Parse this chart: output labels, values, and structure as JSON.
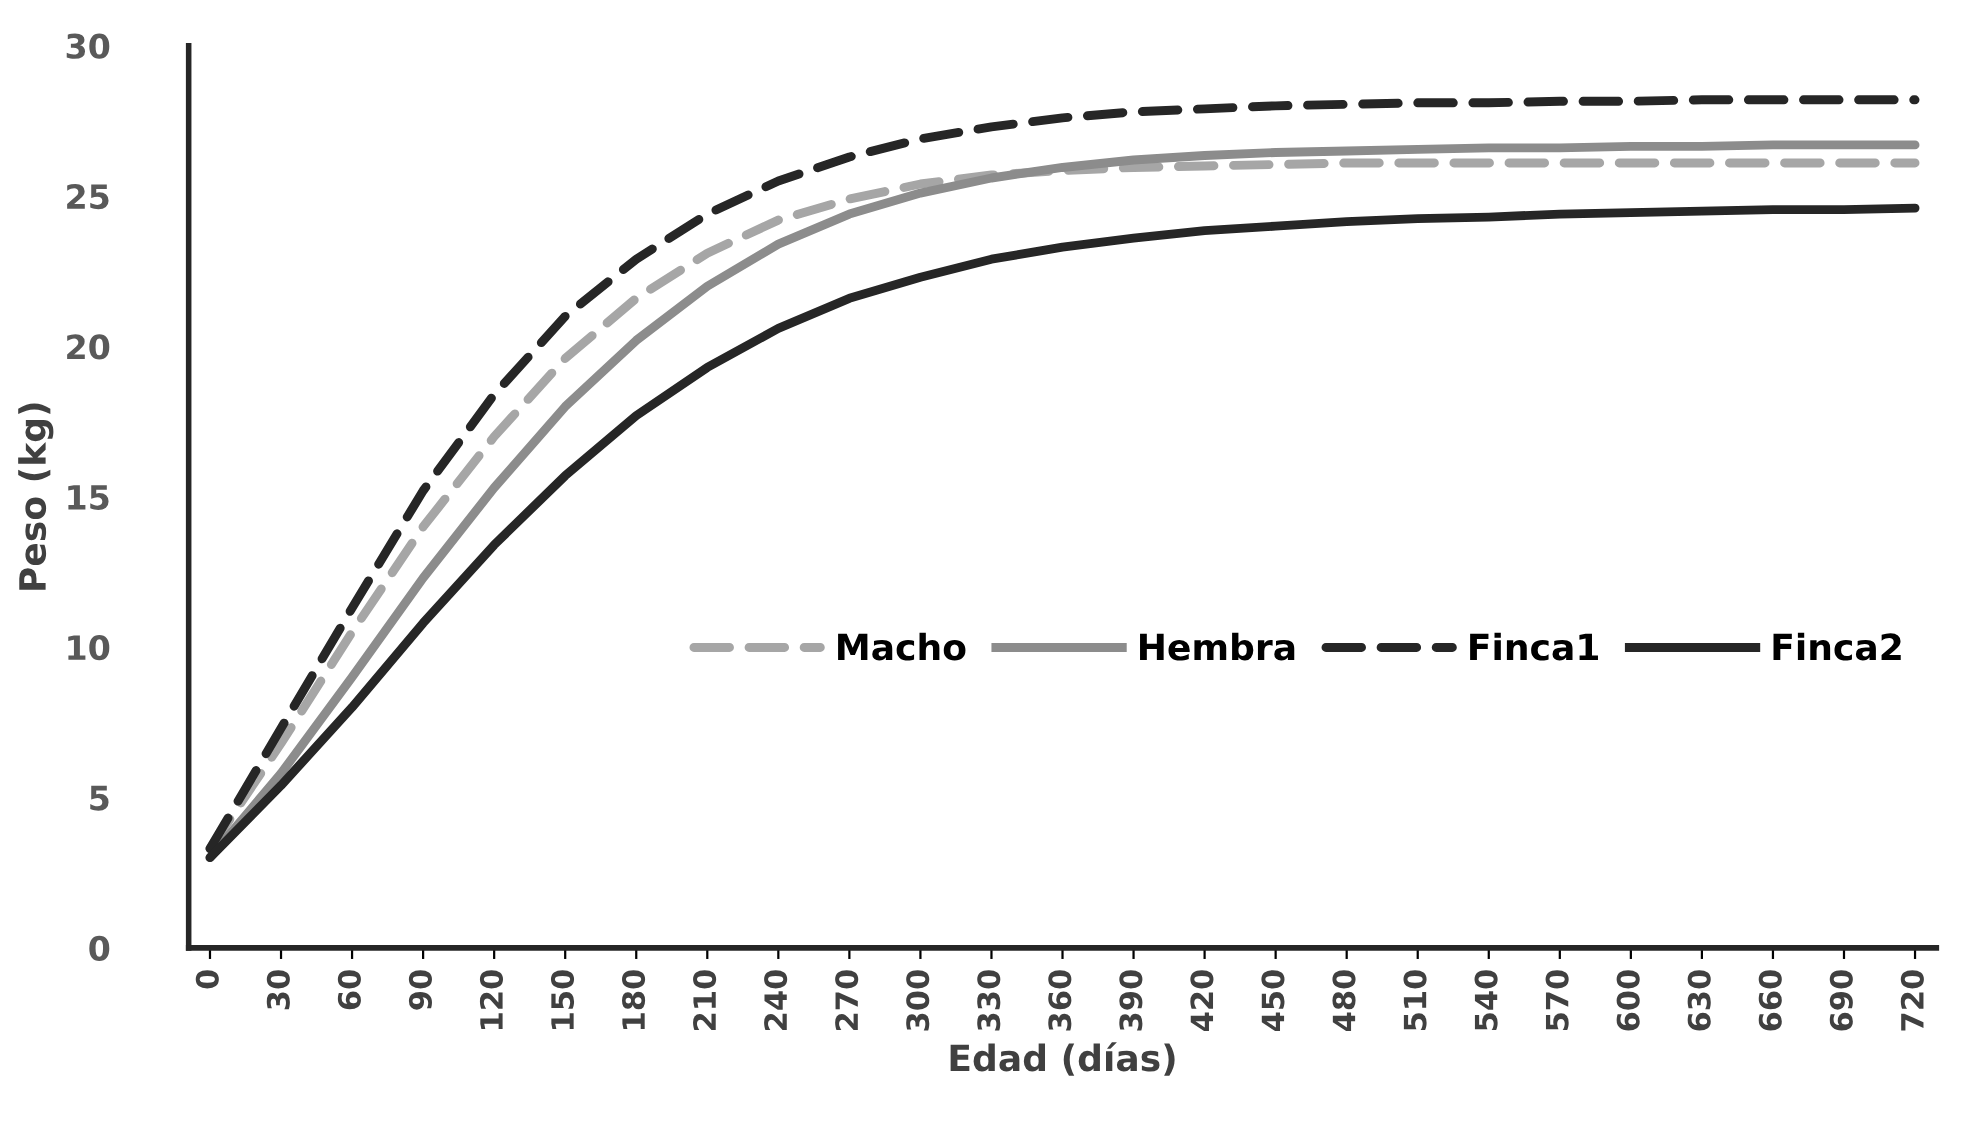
{
  "chart_data": {
    "type": "line",
    "xlabel": "Edad (días)",
    "ylabel": "Peso (kg)",
    "categories": [
      "0",
      "30",
      "60",
      "90",
      "120",
      "150",
      "180",
      "210",
      "240",
      "270",
      "300",
      "330",
      "360",
      "390",
      "420",
      "450",
      "480",
      "510",
      "540",
      "570",
      "600",
      "630",
      "660",
      "690",
      "720"
    ],
    "ylim": [
      0,
      30
    ],
    "yticks": [
      0,
      5,
      10,
      15,
      20,
      25,
      30
    ],
    "grid": false,
    "legend": "right",
    "series": [
      {
        "name": "Macho",
        "color": "#a6a6a6",
        "line_style": "dashed",
        "values": [
          3.3,
          6.8,
          10.5,
          14.0,
          17.0,
          19.6,
          21.6,
          23.1,
          24.2,
          24.9,
          25.4,
          25.7,
          25.85,
          25.95,
          26.0,
          26.05,
          26.1,
          26.1,
          26.1,
          26.1,
          26.1,
          26.1,
          26.1,
          26.1,
          26.1
        ]
      },
      {
        "name": "Hembra",
        "color": "#8c8c8c",
        "line_style": "solid",
        "values": [
          3.0,
          5.8,
          9.0,
          12.3,
          15.3,
          18.0,
          20.2,
          22.0,
          23.4,
          24.4,
          25.1,
          25.6,
          25.95,
          26.2,
          26.35,
          26.45,
          26.5,
          26.55,
          26.6,
          26.6,
          26.65,
          26.65,
          26.7,
          26.7,
          26.7
        ]
      },
      {
        "name": "Finca1",
        "color": "#262626",
        "line_style": "dashed",
        "values": [
          3.3,
          7.3,
          11.3,
          15.2,
          18.4,
          21.0,
          22.9,
          24.4,
          25.5,
          26.3,
          26.9,
          27.3,
          27.6,
          27.8,
          27.9,
          28.0,
          28.05,
          28.1,
          28.1,
          28.15,
          28.15,
          28.2,
          28.2,
          28.2,
          28.2
        ]
      },
      {
        "name": "Finca2",
        "color": "#262626",
        "line_style": "solid",
        "values": [
          3.0,
          5.4,
          8.0,
          10.8,
          13.4,
          15.7,
          17.7,
          19.3,
          20.6,
          21.6,
          22.3,
          22.9,
          23.3,
          23.6,
          23.85,
          24.0,
          24.15,
          24.25,
          24.3,
          24.4,
          24.45,
          24.5,
          24.55,
          24.55,
          24.6
        ]
      }
    ]
  }
}
